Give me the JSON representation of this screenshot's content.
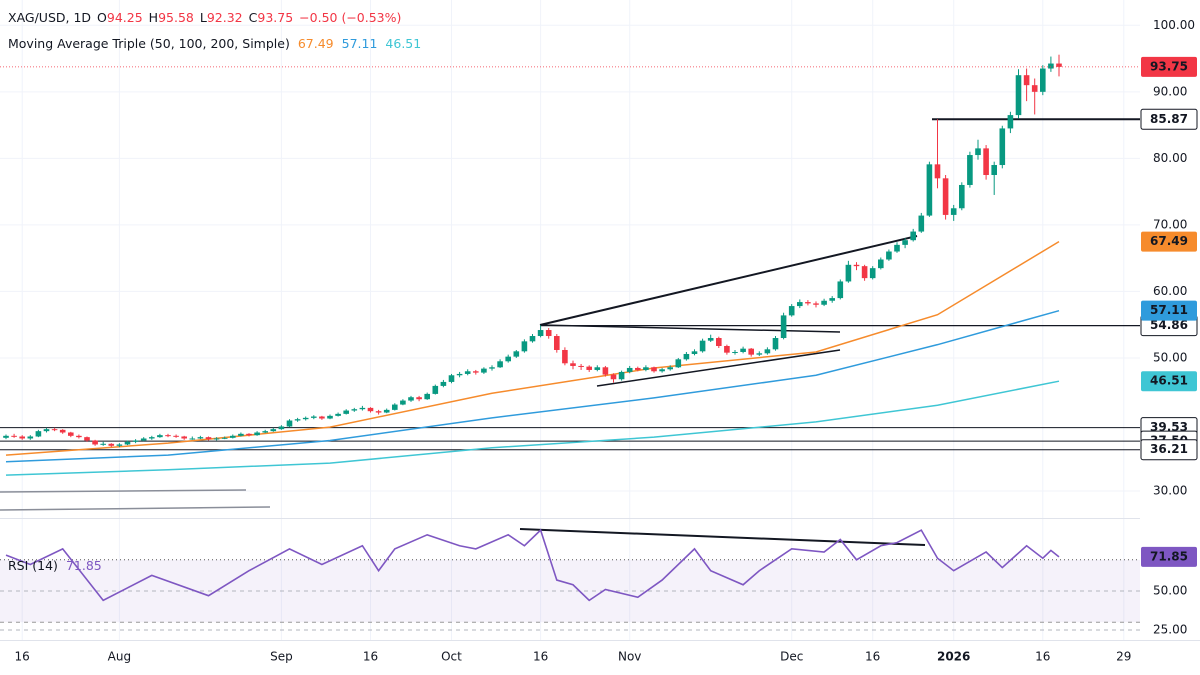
{
  "chart_data": {
    "type": "candlestick",
    "header": {
      "symbol": "XAG/USD, 1D",
      "fields": [
        "O",
        "H",
        "L",
        "C"
      ],
      "change": "−0.50 (−0.53%)"
    },
    "up_color": "#089981",
    "down_color": "#f23645",
    "xlim": [
      -0.74,
      140
    ],
    "xticks": [
      {
        "value": 2,
        "label": "16"
      },
      {
        "value": 14,
        "label": "Aug"
      },
      {
        "value": 34,
        "label": "Sep"
      },
      {
        "value": 45,
        "label": "16"
      },
      {
        "value": 55,
        "label": "Oct"
      },
      {
        "value": 66,
        "label": "16"
      },
      {
        "value": 77,
        "label": "Nov"
      },
      {
        "value": 97,
        "label": "Dec"
      },
      {
        "value": 107,
        "label": "16"
      },
      {
        "value": 117,
        "label": "2026"
      },
      {
        "value": 128,
        "label": "16"
      },
      {
        "value": 138,
        "label": "29"
      }
    ],
    "ylim": [
      26.4,
      103.8
    ],
    "yticks": [
      {
        "value": 100,
        "label": "100.00"
      },
      {
        "value": 90,
        "label": "90.00"
      },
      {
        "value": 80,
        "label": "80.00"
      },
      {
        "value": 70,
        "label": "70.00"
      },
      {
        "value": 60,
        "label": "60.00"
      },
      {
        "value": 50,
        "label": "50.00"
      },
      {
        "value": 30,
        "label": "30.00"
      }
    ],
    "grid": true,
    "ohlc": [
      [
        38.0,
        38.5,
        37.8,
        38.3
      ],
      [
        38.3,
        38.6,
        38.0,
        38.2
      ],
      [
        38.2,
        38.4,
        37.7,
        37.9
      ],
      [
        37.9,
        38.4,
        37.7,
        38.2
      ],
      [
        38.2,
        39.2,
        38.1,
        39.0
      ],
      [
        39.0,
        39.5,
        38.8,
        39.3
      ],
      [
        39.3,
        39.5,
        39.0,
        39.2
      ],
      [
        39.2,
        39.3,
        38.6,
        38.8
      ],
      [
        38.8,
        38.9,
        38.1,
        38.3
      ],
      [
        38.3,
        38.5,
        37.9,
        38.1
      ],
      [
        38.1,
        38.2,
        37.4,
        37.6
      ],
      [
        37.6,
        37.7,
        36.8,
        37.0
      ],
      [
        37.0,
        37.4,
        36.8,
        37.1
      ],
      [
        37.1,
        37.2,
        36.6,
        36.8
      ],
      [
        36.8,
        37.2,
        36.6,
        37.0
      ],
      [
        37.0,
        37.6,
        36.9,
        37.4
      ],
      [
        37.4,
        37.8,
        37.2,
        37.6
      ],
      [
        37.6,
        38.1,
        37.5,
        37.9
      ],
      [
        37.9,
        38.3,
        37.7,
        38.1
      ],
      [
        38.1,
        38.6,
        38.0,
        38.4
      ],
      [
        38.4,
        38.6,
        38.1,
        38.3
      ],
      [
        38.3,
        38.5,
        38.0,
        38.2
      ],
      [
        38.2,
        38.3,
        37.7,
        37.9
      ],
      [
        37.9,
        38.2,
        37.7,
        37.9
      ],
      [
        37.9,
        38.3,
        37.8,
        38.1
      ],
      [
        38.1,
        38.2,
        37.6,
        37.8
      ],
      [
        37.8,
        38.1,
        37.6,
        37.9
      ],
      [
        37.9,
        38.2,
        37.8,
        38.0
      ],
      [
        38.0,
        38.5,
        37.9,
        38.3
      ],
      [
        38.3,
        38.8,
        38.2,
        38.6
      ],
      [
        38.6,
        38.7,
        38.2,
        38.4
      ],
      [
        38.4,
        39.0,
        38.3,
        38.8
      ],
      [
        38.8,
        39.2,
        38.7,
        39.0
      ],
      [
        39.0,
        39.5,
        38.9,
        39.3
      ],
      [
        39.3,
        39.9,
        39.2,
        39.7
      ],
      [
        39.7,
        40.8,
        39.6,
        40.6
      ],
      [
        40.6,
        41.0,
        40.4,
        40.8
      ],
      [
        40.8,
        41.2,
        40.6,
        41.0
      ],
      [
        41.0,
        41.4,
        40.8,
        41.2
      ],
      [
        41.2,
        41.3,
        40.7,
        40.9
      ],
      [
        40.9,
        41.5,
        40.8,
        41.3
      ],
      [
        41.3,
        41.8,
        41.2,
        41.6
      ],
      [
        41.6,
        42.3,
        41.5,
        42.1
      ],
      [
        42.1,
        42.5,
        41.9,
        42.3
      ],
      [
        42.3,
        42.8,
        42.1,
        42.5
      ],
      [
        42.5,
        42.6,
        41.8,
        42.0
      ],
      [
        42.0,
        42.2,
        41.5,
        41.8
      ],
      [
        41.8,
        42.4,
        41.7,
        42.2
      ],
      [
        42.2,
        43.2,
        42.1,
        43.0
      ],
      [
        43.0,
        43.8,
        42.9,
        43.6
      ],
      [
        43.6,
        44.3,
        43.4,
        44.1
      ],
      [
        44.1,
        44.3,
        43.5,
        43.8
      ],
      [
        43.8,
        44.8,
        43.7,
        44.6
      ],
      [
        44.6,
        46.0,
        44.5,
        45.8
      ],
      [
        45.8,
        46.7,
        45.6,
        46.4
      ],
      [
        46.4,
        47.6,
        46.2,
        47.4
      ],
      [
        47.4,
        47.9,
        47.1,
        47.6
      ],
      [
        47.6,
        48.3,
        47.4,
        48.0
      ],
      [
        48.0,
        48.2,
        47.5,
        47.8
      ],
      [
        47.8,
        48.6,
        47.6,
        48.4
      ],
      [
        48.4,
        48.9,
        48.1,
        48.6
      ],
      [
        48.6,
        49.8,
        48.5,
        49.5
      ],
      [
        49.5,
        50.5,
        49.3,
        50.2
      ],
      [
        50.2,
        51.2,
        50.0,
        51.0
      ],
      [
        51.0,
        52.8,
        50.8,
        52.5
      ],
      [
        52.5,
        53.6,
        52.3,
        53.3
      ],
      [
        53.3,
        54.9,
        53.1,
        54.2
      ],
      [
        54.2,
        54.5,
        52.9,
        53.3
      ],
      [
        53.3,
        53.6,
        50.8,
        51.2
      ],
      [
        51.2,
        51.6,
        48.9,
        49.2
      ],
      [
        49.2,
        49.6,
        48.3,
        48.8
      ],
      [
        48.8,
        49.1,
        48.2,
        48.7
      ],
      [
        48.7,
        48.9,
        47.9,
        48.2
      ],
      [
        48.2,
        48.9,
        48.0,
        48.6
      ],
      [
        48.6,
        48.8,
        47.2,
        47.5
      ],
      [
        47.5,
        47.7,
        46.3,
        46.8
      ],
      [
        46.8,
        48.1,
        46.6,
        47.9
      ],
      [
        47.9,
        48.8,
        47.7,
        48.5
      ],
      [
        48.5,
        48.7,
        48.0,
        48.2
      ],
      [
        48.2,
        48.9,
        48.0,
        48.6
      ],
      [
        48.6,
        48.7,
        47.8,
        48.0
      ],
      [
        48.0,
        48.5,
        47.8,
        48.3
      ],
      [
        48.3,
        48.9,
        48.1,
        48.6
      ],
      [
        48.6,
        50.0,
        48.5,
        49.8
      ],
      [
        49.8,
        50.9,
        49.6,
        50.6
      ],
      [
        50.6,
        51.3,
        50.4,
        51.0
      ],
      [
        51.0,
        52.9,
        50.8,
        52.6
      ],
      [
        52.6,
        53.5,
        52.4,
        53.0
      ],
      [
        53.0,
        53.2,
        51.5,
        51.8
      ],
      [
        51.8,
        52.0,
        50.5,
        50.8
      ],
      [
        50.8,
        51.2,
        50.5,
        50.9
      ],
      [
        50.9,
        51.7,
        50.7,
        51.4
      ],
      [
        51.4,
        51.5,
        50.2,
        50.5
      ],
      [
        50.5,
        51.0,
        50.3,
        50.7
      ],
      [
        50.7,
        51.6,
        50.5,
        51.3
      ],
      [
        51.3,
        53.3,
        51.1,
        53.0
      ],
      [
        53.0,
        56.8,
        52.8,
        56.4
      ],
      [
        56.4,
        58.1,
        56.2,
        57.8
      ],
      [
        57.8,
        58.8,
        57.5,
        58.4
      ],
      [
        58.4,
        58.7,
        57.9,
        58.2
      ],
      [
        58.2,
        58.5,
        57.6,
        58.0
      ],
      [
        58.0,
        58.9,
        57.8,
        58.6
      ],
      [
        58.6,
        59.3,
        58.3,
        59.0
      ],
      [
        59.0,
        61.8,
        58.8,
        61.5
      ],
      [
        61.5,
        64.6,
        61.3,
        64.0
      ],
      [
        64.0,
        64.4,
        63.2,
        63.8
      ],
      [
        63.8,
        64.0,
        61.6,
        62.0
      ],
      [
        62.0,
        63.8,
        61.8,
        63.5
      ],
      [
        63.5,
        65.1,
        63.3,
        64.8
      ],
      [
        64.8,
        66.3,
        64.6,
        66.0
      ],
      [
        66.0,
        67.4,
        65.8,
        67.0
      ],
      [
        67.0,
        68.0,
        66.5,
        67.7
      ],
      [
        67.7,
        69.4,
        67.5,
        69.0
      ],
      [
        69.0,
        71.8,
        68.8,
        71.4
      ],
      [
        71.4,
        79.5,
        71.2,
        79.1
      ],
      [
        79.1,
        85.87,
        75.5,
        77.0
      ],
      [
        77.0,
        77.5,
        70.8,
        71.5
      ],
      [
        71.5,
        73.0,
        70.6,
        72.5
      ],
      [
        72.5,
        76.4,
        72.2,
        76.0
      ],
      [
        76.0,
        81.0,
        75.6,
        80.5
      ],
      [
        80.5,
        82.8,
        79.8,
        81.5
      ],
      [
        81.5,
        82.0,
        76.8,
        77.5
      ],
      [
        77.5,
        79.5,
        74.5,
        79.0
      ],
      [
        79.0,
        84.9,
        78.5,
        84.5
      ],
      [
        84.5,
        87.0,
        83.8,
        86.5
      ],
      [
        86.5,
        93.4,
        86.0,
        92.5
      ],
      [
        92.5,
        93.5,
        88.6,
        91.0
      ],
      [
        91.0,
        92.0,
        86.6,
        90.0
      ],
      [
        90.0,
        94.0,
        89.5,
        93.5
      ],
      [
        93.5,
        95.3,
        93.0,
        94.25
      ],
      [
        94.25,
        95.58,
        92.32,
        93.75
      ]
    ],
    "ma_title": "Moving Average Triple (50, 100, 200, Simple)",
    "ma": [
      {
        "color": "#f68b2c",
        "x": [
          0,
          20,
          40,
          60,
          80,
          100,
          115,
          130
        ],
        "values": [
          35.4,
          37.2,
          39.6,
          44.7,
          48.5,
          50.9,
          56.5,
          67.49
        ]
      },
      {
        "color": "#2f9bdc",
        "x": [
          0,
          20,
          40,
          60,
          80,
          100,
          115,
          130
        ],
        "values": [
          34.4,
          35.4,
          37.6,
          41.0,
          44.0,
          47.4,
          52.0,
          57.11
        ]
      },
      {
        "color": "#3fc6d4",
        "x": [
          0,
          20,
          40,
          60,
          80,
          100,
          115,
          130
        ],
        "values": [
          32.4,
          33.2,
          34.2,
          36.5,
          38.1,
          40.4,
          42.9,
          46.51
        ]
      }
    ],
    "levels": [
      85.87,
      54.86,
      39.53,
      {
        "value": 37.5,
        "label": "37.50"
      },
      36.21
    ],
    "rsi": {
      "title": "RSI (14)",
      "color": "#7e57c2",
      "ylim": [
        18.6,
        95.5
      ],
      "band": [
        30,
        70
      ],
      "yticks": [
        {
          "value": 50,
          "label": "50.00"
        },
        {
          "value": 25,
          "label": "25.00"
        }
      ],
      "x": [
        0,
        3,
        7,
        12,
        18,
        25,
        30,
        35,
        39,
        44,
        46,
        48,
        52,
        56,
        58,
        62,
        64,
        66,
        68,
        70,
        72,
        74,
        78,
        81,
        85,
        87,
        91,
        93,
        97,
        101,
        103,
        105,
        108,
        110,
        113,
        115,
        117,
        119,
        121,
        123,
        126,
        128,
        129,
        130
      ],
      "values": [
        73,
        67,
        77,
        44,
        60,
        47,
        63,
        77,
        67,
        79,
        63,
        77,
        86,
        79,
        77,
        86,
        79,
        89,
        57,
        54,
        44,
        51,
        46,
        57,
        77,
        63,
        54,
        63,
        77,
        75,
        83,
        70,
        79,
        81,
        89,
        71,
        63,
        69,
        75,
        65,
        79,
        71,
        76,
        71.85
      ]
    }
  }
}
